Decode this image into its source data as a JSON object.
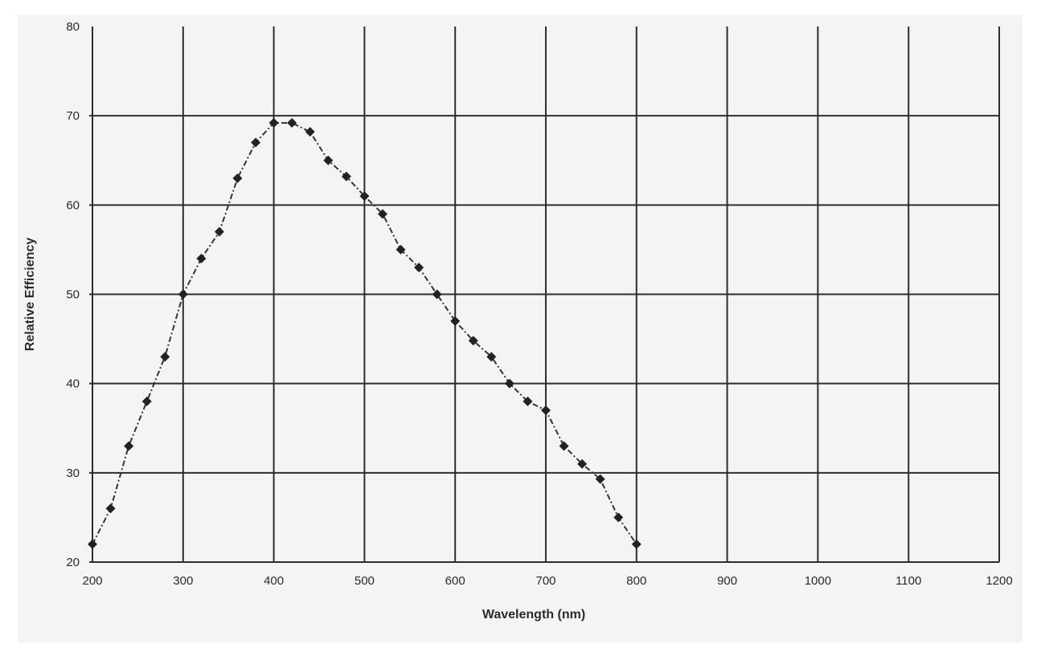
{
  "chart_data": {
    "type": "line",
    "title": "",
    "xlabel": "Wavelength (nm)",
    "ylabel": "Relative Efficiency",
    "xlim": [
      200,
      1200
    ],
    "ylim": [
      20,
      80
    ],
    "grid": true,
    "legend": null,
    "x_ticks": [
      200,
      300,
      400,
      500,
      600,
      700,
      800,
      900,
      1000,
      1100,
      1200
    ],
    "y_ticks": [
      20,
      30,
      40,
      50,
      60,
      70,
      80
    ],
    "x_tick_labels": [
      "200",
      "300",
      "400",
      "500",
      "600",
      "700",
      "800",
      "900",
      "1000",
      "1100",
      "1200"
    ],
    "y_tick_labels": [
      "20",
      "30",
      "40",
      "50",
      "60",
      "70",
      "80"
    ],
    "series": [
      {
        "name": "Relative Efficiency",
        "marker": "diamond",
        "line_style": "dash-dot",
        "color": "#222222",
        "x": [
          200,
          220,
          240,
          260,
          280,
          300,
          320,
          340,
          360,
          380,
          400,
          420,
          440,
          460,
          480,
          500,
          520,
          540,
          560,
          580,
          600,
          620,
          640,
          660,
          680,
          700,
          720,
          740,
          760,
          780,
          800
        ],
        "values": [
          22,
          26,
          33,
          38,
          43,
          50,
          54,
          57,
          63,
          67,
          69.2,
          69.2,
          68.2,
          65,
          63.2,
          61,
          59,
          55,
          53,
          50,
          47,
          44.8,
          43,
          40,
          38,
          37,
          33,
          31,
          29.3,
          25,
          22
        ]
      }
    ]
  }
}
